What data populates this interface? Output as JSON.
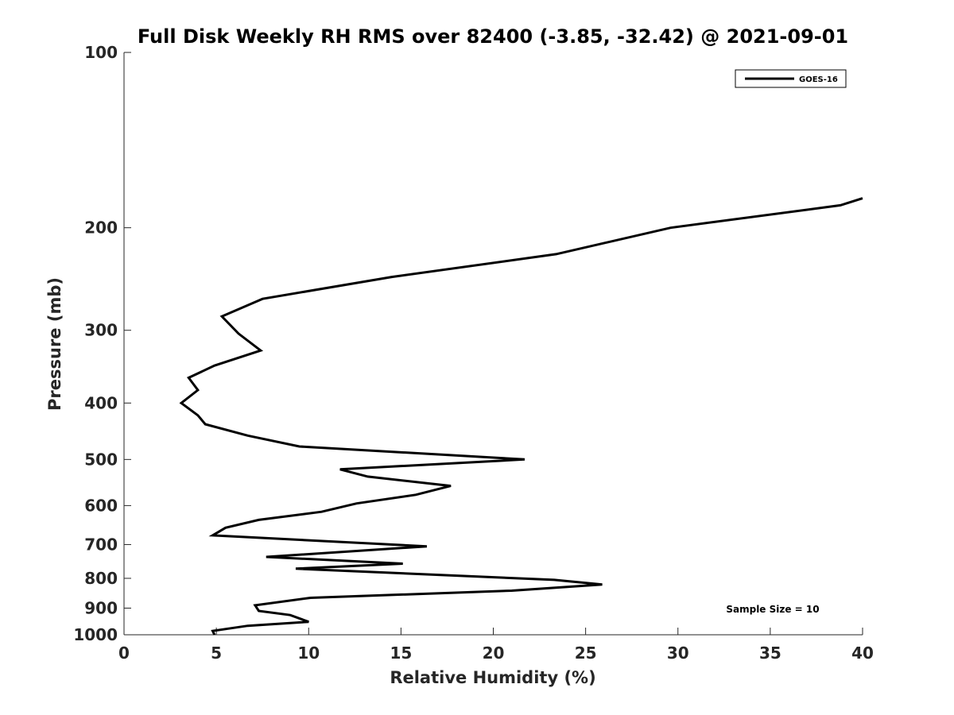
{
  "chart_data": {
    "type": "line",
    "title": "Full Disk Weekly RH RMS over 82400 (-3.85, -32.42) @ 2021-09-01",
    "xlabel": "Relative Humidity (%)",
    "ylabel": "Pressure (mb)",
    "xlim": [
      0,
      40
    ],
    "ylim": [
      100,
      1000
    ],
    "y_scale": "log",
    "y_reversed": true,
    "x_ticks": [
      "0",
      "5",
      "10",
      "15",
      "20",
      "25",
      "30",
      "35",
      "40"
    ],
    "y_ticks": [
      "100",
      "200",
      "300",
      "400",
      "500",
      "600",
      "700",
      "800",
      "900",
      "1000"
    ],
    "legend": {
      "position": "top-right",
      "entries": [
        "GOES-16"
      ]
    },
    "annotation": "Sample Size = 10",
    "series": [
      {
        "name": "GOES-16",
        "color": "#000000",
        "points": [
          [
            4.9,
            1000
          ],
          [
            4.8,
            985
          ],
          [
            6.7,
            965
          ],
          [
            10.0,
            950
          ],
          [
            9.0,
            925
          ],
          [
            7.3,
            910
          ],
          [
            7.1,
            890
          ],
          [
            10.1,
            864
          ],
          [
            21.0,
            840
          ],
          [
            25.9,
            820
          ],
          [
            23.3,
            805
          ],
          [
            9.3,
            770
          ],
          [
            15.1,
            755
          ],
          [
            7.7,
            735
          ],
          [
            16.4,
            705
          ],
          [
            4.8,
            675
          ],
          [
            5.5,
            655
          ],
          [
            7.3,
            635
          ],
          [
            10.7,
            615
          ],
          [
            12.6,
            595
          ],
          [
            15.8,
            575
          ],
          [
            17.7,
            555
          ],
          [
            13.2,
            535
          ],
          [
            11.7,
            520
          ],
          [
            21.7,
            500
          ],
          [
            9.5,
            475
          ],
          [
            6.7,
            455
          ],
          [
            4.4,
            435
          ],
          [
            4.0,
            420
          ],
          [
            3.1,
            400
          ],
          [
            4.0,
            380
          ],
          [
            3.5,
            362
          ],
          [
            4.9,
            345
          ],
          [
            7.4,
            325
          ],
          [
            6.2,
            304
          ],
          [
            5.3,
            284
          ],
          [
            7.5,
            265
          ],
          [
            14.5,
            243
          ],
          [
            23.4,
            222
          ],
          [
            29.6,
            200
          ],
          [
            38.8,
            183
          ],
          [
            40.0,
            178
          ]
        ]
      }
    ]
  }
}
